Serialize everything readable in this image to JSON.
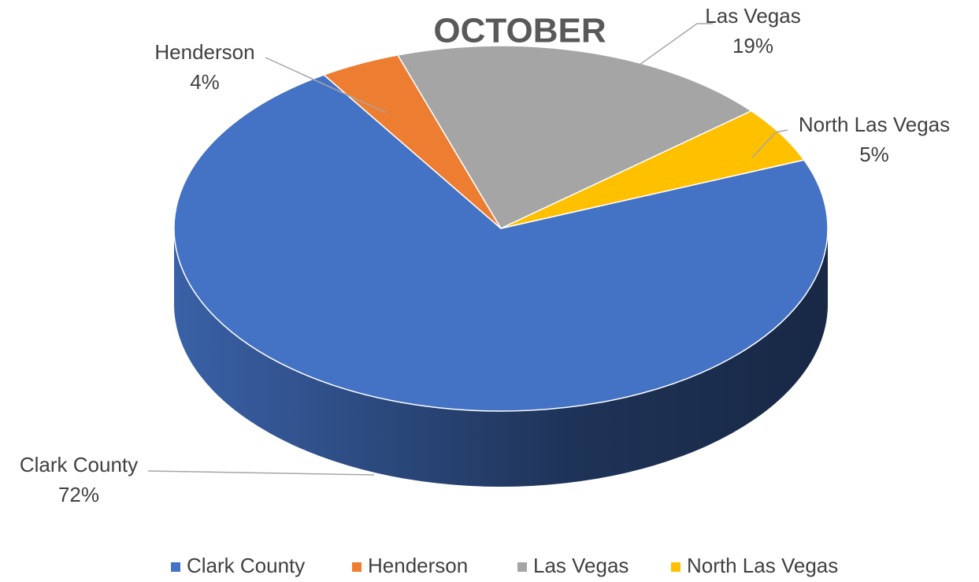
{
  "chart_data": {
    "type": "pie",
    "title": "OCTOBER",
    "categories": [
      "Clark County",
      "Henderson",
      "Las Vegas",
      "North Las Vegas"
    ],
    "values": [
      72,
      4,
      19,
      5
    ],
    "value_labels": [
      "72%",
      "4%",
      "19%",
      "5%"
    ],
    "colors": [
      "#4472c4",
      "#ed7d31",
      "#a5a5a5",
      "#ffc000"
    ],
    "legend": "bottom"
  }
}
